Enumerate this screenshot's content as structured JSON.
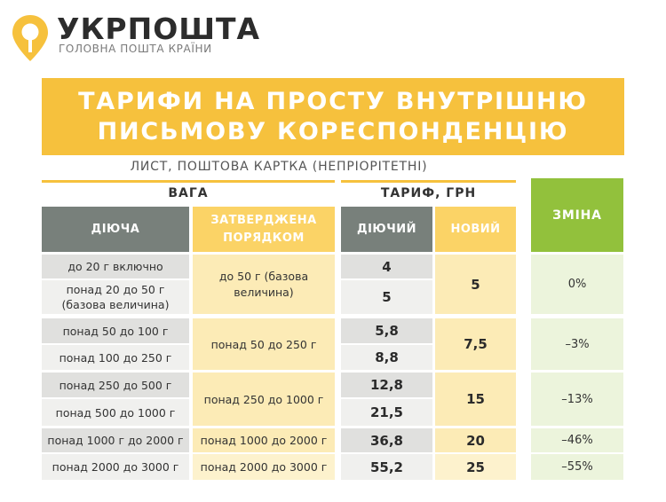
{
  "brand": {
    "name": "УКРПОШТА",
    "tagline": "ГОЛОВНА ПОШТА КРАЇНИ",
    "colors": {
      "yellow": "#f6c13d",
      "green": "#92c13c",
      "gray": "#78807b"
    }
  },
  "title_line1": "ТАРИФИ НА ПРОСТУ ВНУТРІШНЮ",
  "title_line2": "ПИСЬМОВУ КОРЕСПОНДЕНЦІЮ",
  "subtitle": "ЛИСТ, ПОШТОВА КАРТКА (НЕПРІОРІТЕТНІ)",
  "headers": {
    "weight": "ВАГА",
    "tariff": "ТАРИФ, ГРН",
    "current": "ДІЮЧА",
    "approved_line1": "ЗАТВЕРДЖЕНА",
    "approved_line2": "ПОРЯДКОМ",
    "tariff_current": "ДІЮЧИЙ",
    "tariff_new": "НОВИЙ",
    "change": "ЗМІНА"
  },
  "rows": [
    {
      "weight_current": "до 20 г включно",
      "tariff_current": "4"
    },
    {
      "weight_current": "понад 20 до 50 г (базова величина)",
      "tariff_current": "5"
    },
    {
      "weight_current": "понад 50 до 100 г",
      "tariff_current": "5,8"
    },
    {
      "weight_current": "понад 100 до 250 г",
      "tariff_current": "8,8"
    },
    {
      "weight_current": "понад 250 до 500 г",
      "tariff_current": "12,8"
    },
    {
      "weight_current": "понад 500 до 1000 г",
      "tariff_current": "21,5"
    },
    {
      "weight_current": "понад 1000 г до 2000 г",
      "tariff_current": "36,8"
    },
    {
      "weight_current": "понад 2000 до 3000 г",
      "tariff_current": "55,2"
    }
  ],
  "groups": [
    {
      "weight_approved": "до 50 г (базова величина)",
      "tariff_new": "5",
      "change": "0%"
    },
    {
      "weight_approved": "понад 50 до 250 г",
      "tariff_new": "7,5",
      "change": "–3%"
    },
    {
      "weight_approved": "понад 250 до 1000 г",
      "tariff_new": "15",
      "change": "–13%"
    },
    {
      "weight_approved": "понад 1000 до 2000 г",
      "tariff_new": "20",
      "change": "–46%"
    },
    {
      "weight_approved": "понад 2000 до 3000 г",
      "tariff_new": "25",
      "change": "–55%"
    }
  ]
}
